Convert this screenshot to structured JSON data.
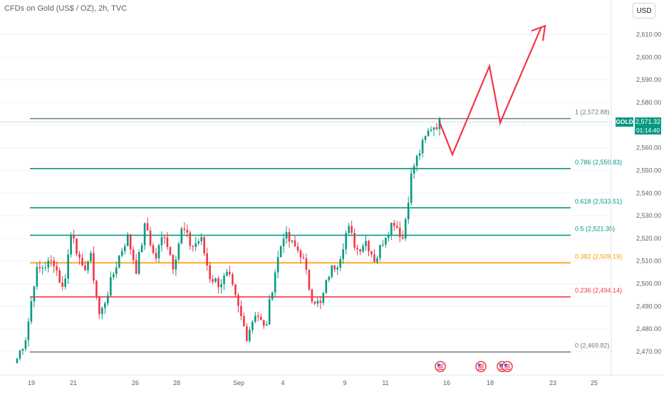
{
  "header": {
    "title": "CFDs on Gold (US$ / OZ), 2h, TVC"
  },
  "currency_button": {
    "label": "USD"
  },
  "last_price": {
    "symbol": "GOLD",
    "price": "2,571.32",
    "countdown": "01:14:40"
  },
  "colors": {
    "up": "#089981",
    "down": "#f23645",
    "fib_neutral": "#787b86",
    "fib_green": "#089981",
    "fib_orange": "#ff9800",
    "fib_red": "#f23645",
    "arrow": "#f23645"
  },
  "chart_data": {
    "type": "candlestick",
    "x_ticks": [
      "19",
      "21",
      "26",
      "28",
      "Sep",
      "4",
      "9",
      "11",
      "16",
      "18",
      "23",
      "25"
    ],
    "y_ticks": [
      "2,610.00",
      "2,600.00",
      "2,590.00",
      "2,580.00",
      "2,570.00",
      "2,560.00",
      "2,550.00",
      "2,540.00",
      "2,530.00",
      "2,520.00",
      "2,510.00",
      "2,500.00",
      "2,490.00",
      "2,480.00",
      "2,470.00"
    ],
    "ylim": [
      2465.5,
      2619.0
    ],
    "fib_levels": [
      {
        "label": "1 (2,572.88)",
        "value": 2572.88,
        "color": "#787b86"
      },
      {
        "label": "0.786 (2,550.83)",
        "value": 2550.83,
        "color": "#089981"
      },
      {
        "label": "0.618 (2,533.51)",
        "value": 2533.51,
        "color": "#089981"
      },
      {
        "label": "0.5 (2,521.35)",
        "value": 2521.35,
        "color": "#089981"
      },
      {
        "label": "0.382 (2,509.19)",
        "value": 2509.19,
        "color": "#ff9800"
      },
      {
        "label": "0.236 (2,494.14)",
        "value": 2494.14,
        "color": "#f23645"
      },
      {
        "label": "0 (2,469.82)",
        "value": 2469.82,
        "color": "#787b86"
      }
    ],
    "current_price": 2571.32,
    "key_prices": [
      2467,
      2477,
      2505,
      2508,
      2510,
      2497,
      2525,
      2505,
      2512,
      2485,
      2498,
      2511,
      2521,
      2506,
      2527,
      2510,
      2523,
      2508,
      2525,
      2516,
      2520,
      2503,
      2500,
      2504,
      2490,
      2477,
      2488,
      2479,
      2504,
      2522,
      2517,
      2513,
      2495,
      2490,
      2505,
      2510,
      2525,
      2515,
      2519,
      2510,
      2521,
      2528,
      2520,
      2550,
      2560,
      2569,
      2571
    ],
    "projection": [
      2571.3,
      2557.0,
      2596.0,
      2571.0,
      2613.5
    ],
    "event_markers": [
      "US",
      "US",
      "US",
      "US"
    ]
  }
}
